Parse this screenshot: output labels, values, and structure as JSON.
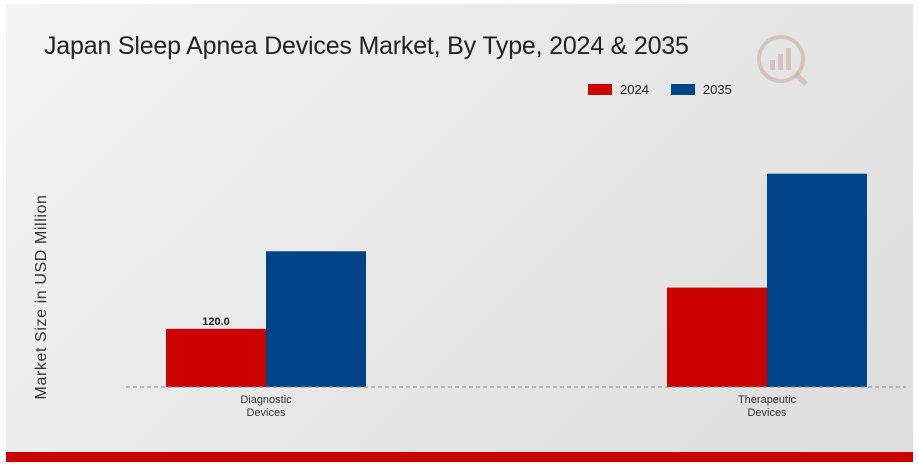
{
  "chart_data": {
    "type": "bar",
    "title": "Japan Sleep Apnea Devices Market, By Type, 2024 & 2035",
    "ylabel": "Market Size in USD Million",
    "xlabel": "",
    "categories": [
      [
        "Diagnostic",
        "Devices"
      ],
      [
        "Therapeutic",
        "Devices"
      ]
    ],
    "series": [
      {
        "name": "2024",
        "color": "#cc0000",
        "values": [
          120.0,
          205.0
        ]
      },
      {
        "name": "2035",
        "color": "#004488",
        "values": [
          280.0,
          440.0
        ]
      }
    ],
    "data_labels": [
      {
        "series": 0,
        "index": 0,
        "text": "120.0"
      }
    ],
    "ylim": [
      0,
      460
    ],
    "grid": false,
    "legend_position": "top-right"
  },
  "colors": {
    "bottom_bar": "#cc0000",
    "baseline": "#888888"
  },
  "icons": {
    "logo": "brand-logo-icon"
  }
}
